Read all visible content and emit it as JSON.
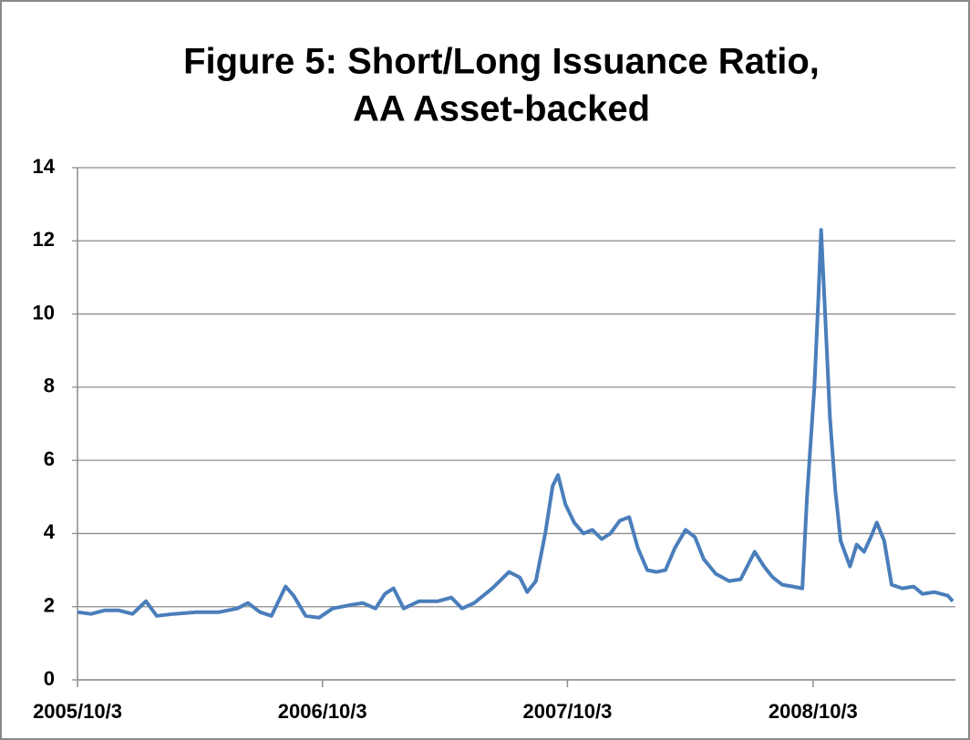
{
  "chart_data": {
    "type": "line",
    "title": [
      "Figure 5: Short/Long Issuance Ratio,",
      "AA Asset-backed"
    ],
    "x": [
      "2005-10-03",
      "2005-10-23",
      "2005-11-13",
      "2005-12-03",
      "2005-12-24",
      "2006-01-13",
      "2006-01-29",
      "2006-02-23",
      "2006-03-29",
      "2006-05-02",
      "2006-05-29",
      "2006-06-14",
      "2006-07-02",
      "2006-07-19",
      "2006-08-09",
      "2006-08-21",
      "2006-09-08",
      "2006-09-28",
      "2006-10-18",
      "2006-11-15",
      "2006-12-02",
      "2006-12-21",
      "2007-01-04",
      "2007-01-17",
      "2007-02-01",
      "2007-02-24",
      "2007-03-24",
      "2007-04-13",
      "2007-04-29",
      "2007-05-17",
      "2007-06-13",
      "2007-07-08",
      "2007-07-24",
      "2007-08-04",
      "2007-08-17",
      "2007-08-31",
      "2007-09-11",
      "2007-09-19",
      "2007-09-30",
      "2007-10-13",
      "2007-10-27",
      "2007-11-09",
      "2007-11-23",
      "2007-12-06",
      "2007-12-20",
      "2008-01-03",
      "2008-01-16",
      "2008-01-30",
      "2008-02-13",
      "2008-02-26",
      "2008-03-11",
      "2008-03-27",
      "2008-04-10",
      "2008-04-23",
      "2008-05-11",
      "2008-05-31",
      "2008-06-17",
      "2008-07-08",
      "2008-07-22",
      "2008-08-04",
      "2008-08-18",
      "2008-09-03",
      "2008-09-17",
      "2008-09-24",
      "2008-10-05",
      "2008-10-11",
      "2008-10-15",
      "2008-10-21",
      "2008-10-28",
      "2008-11-05",
      "2008-11-13",
      "2008-11-27",
      "2008-12-07",
      "2008-12-18",
      "2008-12-28",
      "2009-01-06",
      "2009-01-17",
      "2009-01-28",
      "2009-02-13",
      "2009-03-02",
      "2009-03-15",
      "2009-04-02",
      "2009-04-22",
      "2009-04-29"
    ],
    "series": [
      {
        "name": "Short/Long Issuance Ratio",
        "color": "#4a7ebb",
        "values": [
          1.85,
          1.8,
          1.9,
          1.9,
          1.8,
          2.15,
          1.75,
          1.8,
          1.85,
          1.85,
          1.95,
          2.1,
          1.85,
          1.75,
          2.55,
          2.3,
          1.75,
          1.7,
          1.95,
          2.05,
          2.1,
          1.95,
          2.35,
          2.5,
          1.95,
          2.15,
          2.15,
          2.25,
          1.95,
          2.1,
          2.5,
          2.95,
          2.8,
          2.4,
          2.7,
          4.0,
          5.3,
          5.6,
          4.8,
          4.3,
          4.0,
          4.1,
          3.85,
          4.0,
          4.35,
          4.45,
          3.6,
          3.0,
          2.95,
          3.0,
          3.6,
          4.1,
          3.9,
          3.3,
          2.9,
          2.7,
          2.75,
          3.5,
          3.1,
          2.8,
          2.6,
          2.55,
          2.5,
          5.0,
          8.0,
          10.5,
          12.3,
          10.0,
          7.2,
          5.2,
          3.8,
          3.1,
          3.7,
          3.5,
          3.9,
          4.3,
          3.8,
          2.6,
          2.5,
          2.55,
          2.35,
          2.4,
          2.3,
          2.15
        ]
      }
    ],
    "xlim": [
      "2005-10-03",
      "2009-04-29"
    ],
    "xticks": [
      {
        "value": "2005-10-03",
        "label": "2005/10/3"
      },
      {
        "value": "2006-10-03",
        "label": "2006/10/3"
      },
      {
        "value": "2007-10-03",
        "label": "2007/10/3"
      },
      {
        "value": "2008-10-03",
        "label": "2008/10/3"
      }
    ],
    "ylim": [
      0,
      14
    ],
    "yticks": [
      0,
      2,
      4,
      6,
      8,
      10,
      12,
      14
    ],
    "grid": true
  }
}
